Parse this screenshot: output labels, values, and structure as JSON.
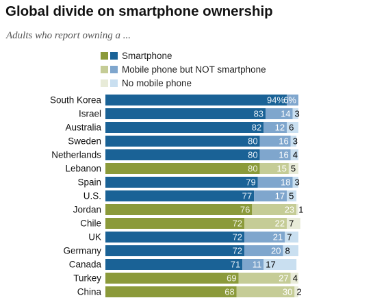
{
  "header": {
    "title": "Global divide on smartphone ownership",
    "subtitle": "Adults who report owning a ..."
  },
  "legend": {
    "items": [
      {
        "label": "Smartphone",
        "colors": [
          "#8b9a3a",
          "#1a6296"
        ]
      },
      {
        "label": "Mobile phone but NOT smartphone",
        "colors": [
          "#c5cc96",
          "#7fa6cd"
        ]
      },
      {
        "label": "No mobile phone",
        "colors": [
          "#e8ebd8",
          "#c9dff0"
        ]
      }
    ]
  },
  "chart_data": {
    "type": "bar",
    "orientation": "horizontal",
    "stacked": true,
    "title": "Global divide on smartphone ownership",
    "subtitle": "Adults who report owning a ...",
    "xlim": [
      0,
      100
    ],
    "unit": "%",
    "categories": [
      "South Korea",
      "Israel",
      "Australia",
      "Sweden",
      "Netherlands",
      "Lebanon",
      "Spain",
      "U.S.",
      "Jordan",
      "Chile",
      "UK",
      "Germany",
      "Canada",
      "Turkey",
      "China"
    ],
    "color_group": [
      "blue",
      "blue",
      "blue",
      "blue",
      "blue",
      "green",
      "blue",
      "blue",
      "green",
      "green",
      "blue",
      "blue",
      "blue",
      "green",
      "green"
    ],
    "series": [
      {
        "name": "Smartphone",
        "values": [
          94,
          83,
          82,
          80,
          80,
          80,
          79,
          77,
          76,
          72,
          72,
          72,
          71,
          69,
          68
        ]
      },
      {
        "name": "Mobile phone but NOT smartphone",
        "values": [
          6,
          14,
          12,
          16,
          16,
          15,
          18,
          17,
          23,
          22,
          21,
          20,
          11,
          27,
          30
        ]
      },
      {
        "name": "No mobile phone",
        "values": [
          0,
          3,
          6,
          3,
          4,
          5,
          3,
          5,
          1,
          7,
          7,
          8,
          17,
          4,
          2
        ]
      }
    ],
    "value_labels": [
      [
        "94%",
        "6%",
        ""
      ],
      [
        "83",
        "14",
        "3"
      ],
      [
        "82",
        "12",
        "6"
      ],
      [
        "80",
        "16",
        "3"
      ],
      [
        "80",
        "16",
        "4"
      ],
      [
        "80",
        "15",
        "5"
      ],
      [
        "79",
        "18",
        "3"
      ],
      [
        "77",
        "17",
        "5"
      ],
      [
        "76",
        "23",
        "1"
      ],
      [
        "72",
        "22",
        "7"
      ],
      [
        "72",
        "21",
        "7"
      ],
      [
        "72",
        "20",
        "8"
      ],
      [
        "71",
        "11",
        "17"
      ],
      [
        "69",
        "27",
        "4"
      ],
      [
        "68",
        "30",
        "2"
      ]
    ],
    "palette": {
      "blue": [
        "#1a6296",
        "#7fa6cd",
        "#c9dff0"
      ],
      "green": [
        "#8b9a3a",
        "#c5cc96",
        "#e8ebd8"
      ]
    },
    "legend_position": "top",
    "grid": false
  }
}
